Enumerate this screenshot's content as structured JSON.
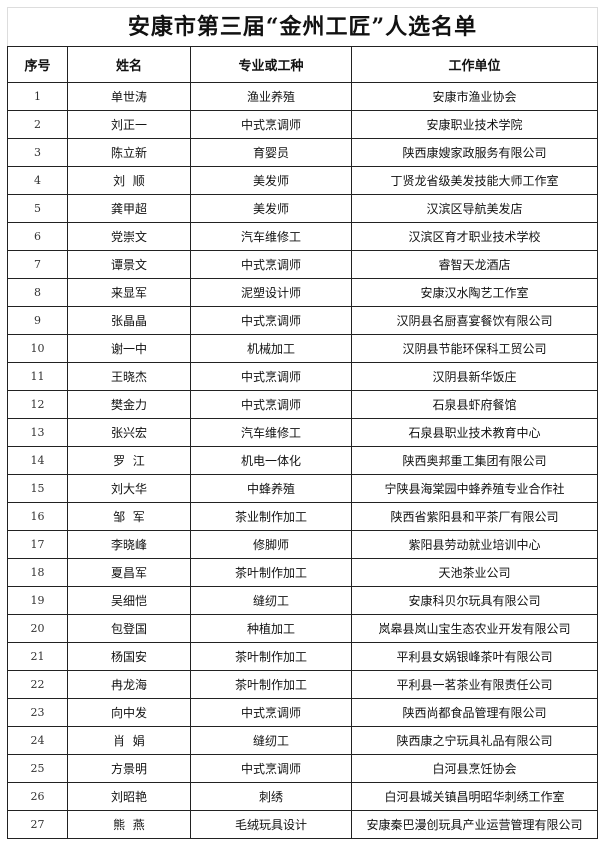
{
  "title": "安康市第三届“金州工匠”人选名单",
  "headers": [
    "序号",
    "姓名",
    "专业或工种",
    "工作单位"
  ],
  "rows": [
    [
      "1",
      "单世涛",
      "渔业养殖",
      "安康市渔业协会"
    ],
    [
      "2",
      "刘正一",
      "中式烹调师",
      "安康职业技术学院"
    ],
    [
      "3",
      "陈立新",
      "育婴员",
      "陕西康嫂家政服务有限公司"
    ],
    [
      "4",
      "刘  顺",
      "美发师",
      "丁贤龙省级美发技能大师工作室"
    ],
    [
      "5",
      "龚甲超",
      "美发师",
      "汉滨区导航美发店"
    ],
    [
      "6",
      "党崇文",
      "汽车维修工",
      "汉滨区育才职业技术学校"
    ],
    [
      "7",
      "谭景文",
      "中式烹调师",
      "睿智天龙酒店"
    ],
    [
      "8",
      "来显军",
      "泥塑设计师",
      "安康汉水陶艺工作室"
    ],
    [
      "9",
      "张晶晶",
      "中式烹调师",
      "汉阴县名厨喜宴餐饮有限公司"
    ],
    [
      "10",
      "谢一中",
      "机械加工",
      "汉阴县节能环保科工贸公司"
    ],
    [
      "11",
      "王晓杰",
      "中式烹调师",
      "汉阴县新华饭庄"
    ],
    [
      "12",
      "樊金力",
      "中式烹调师",
      "石泉县虾府餐馆"
    ],
    [
      "13",
      "张兴宏",
      "汽车维修工",
      "石泉县职业技术教育中心"
    ],
    [
      "14",
      "罗  江",
      "机电一体化",
      "陕西奥邦重工集团有限公司"
    ],
    [
      "15",
      "刘大华",
      "中蜂养殖",
      "宁陕县海棠园中蜂养殖专业合作社"
    ],
    [
      "16",
      "邹  军",
      "茶业制作加工",
      "陕西省紫阳县和平茶厂有限公司"
    ],
    [
      "17",
      "李晓峰",
      "修脚师",
      "紫阳县劳动就业培训中心"
    ],
    [
      "18",
      "夏昌军",
      "茶叶制作加工",
      "天池茶业公司"
    ],
    [
      "19",
      "吴细恺",
      "缝纫工",
      "安康科贝尔玩具有限公司"
    ],
    [
      "20",
      "包登国",
      "种植加工",
      "岚皋县岚山宝生态农业开发有限公司"
    ],
    [
      "21",
      "杨国安",
      "茶叶制作加工",
      "平利县女娲银峰茶叶有限公司"
    ],
    [
      "22",
      "冉龙海",
      "茶叶制作加工",
      "平利县一茗茶业有限责任公司"
    ],
    [
      "23",
      "向中发",
      "中式烹调师",
      "陕西尚都食品管理有限公司"
    ],
    [
      "24",
      "肖  娟",
      "缝纫工",
      "陕西康之宁玩具礼品有限公司"
    ],
    [
      "25",
      "方景明",
      "中式烹调师",
      "白河县烹饪协会"
    ],
    [
      "26",
      "刘昭艳",
      "刺绣",
      "白河县城关镇昌明昭华刺绣工作室"
    ],
    [
      "27",
      "熊  燕",
      "毛绒玩具设计",
      "安康秦巴漫创玩具产业运营管理有限公司"
    ]
  ]
}
